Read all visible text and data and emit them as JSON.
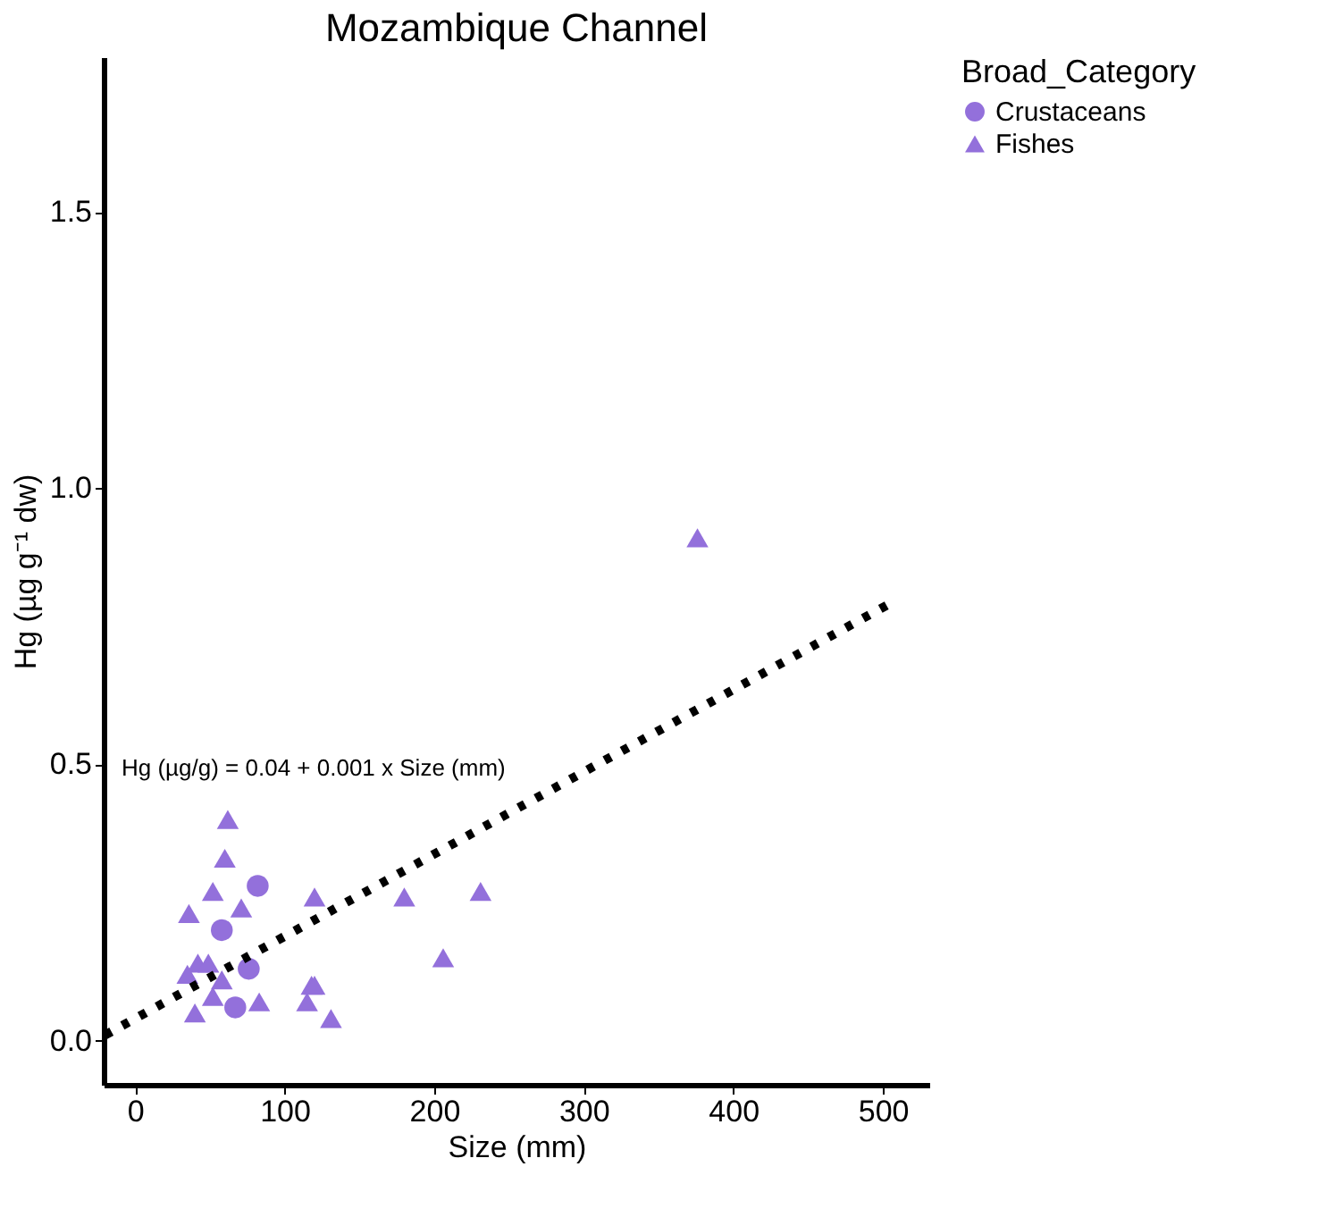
{
  "chart_data": {
    "type": "scatter",
    "title": "Mozambique Channel",
    "xlabel": "Size (mm)",
    "ylabel": "Hg (µg g⁻¹ dw)",
    "legend_title": "Broad_Category",
    "legend": "right",
    "grid": false,
    "xlim": [
      -21,
      531
    ],
    "xticks": [
      0,
      100,
      200,
      300,
      400,
      500
    ],
    "ylim": [
      -0.08,
      1.78
    ],
    "yticks": [
      {
        "value": 0,
        "label": "0.0"
      },
      0.5,
      {
        "value": 1,
        "label": "1.0"
      },
      1.5
    ],
    "series": [
      {
        "name": "Crustaceans",
        "color": "#9370db",
        "marker": "circle",
        "x": [
          82,
          58,
          76,
          67
        ],
        "values": [
          0.28,
          0.2,
          0.13,
          0.06
        ]
      },
      {
        "name": "Fishes",
        "color": "#9370db",
        "marker": "triangle",
        "x": [
          62,
          60,
          52,
          36,
          71,
          120,
          180,
          231,
          206,
          42,
          49,
          35,
          58,
          52,
          40,
          83,
          118,
          120,
          115,
          131,
          376
        ],
        "values": [
          0.4,
          0.33,
          0.27,
          0.23,
          0.24,
          0.26,
          0.26,
          0.27,
          0.15,
          0.14,
          0.14,
          0.12,
          0.11,
          0.08,
          0.05,
          0.07,
          0.1,
          0.1,
          0.07,
          0.04,
          0.91
        ]
      },
      {
        "type": "line",
        "color": "#000000",
        "line_style": "dotted",
        "marker": "none",
        "x": [
          -20,
          504
        ],
        "values": [
          0.01,
          0.79
        ]
      }
    ],
    "annotations": [
      "Hg (µg/g) = 0.04 + 0.001 x Size (mm)"
    ]
  }
}
